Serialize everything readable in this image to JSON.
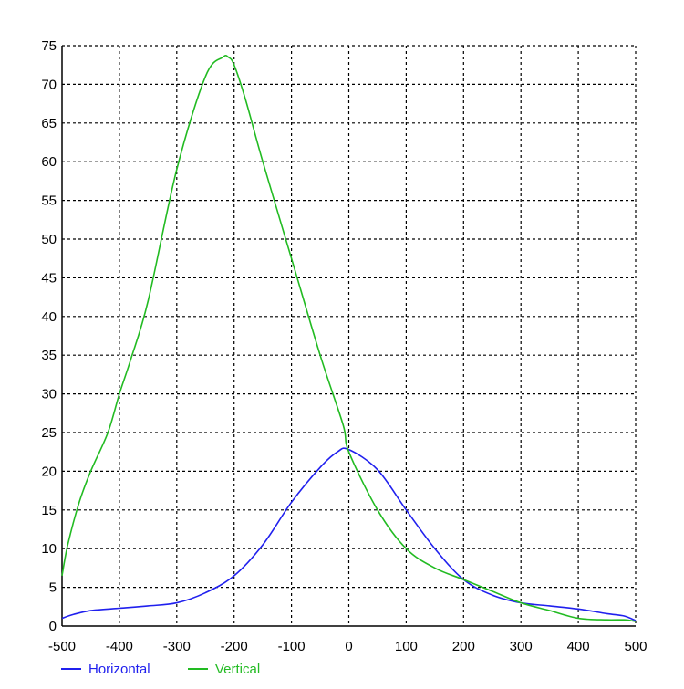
{
  "chart_data": {
    "type": "line",
    "title": "",
    "xlabel": "",
    "ylabel": "",
    "xlim": [
      -500,
      500
    ],
    "ylim": [
      0,
      75
    ],
    "xticks": [
      -500,
      -400,
      -300,
      -200,
      -100,
      0,
      100,
      200,
      300,
      400,
      500
    ],
    "yticks": [
      0,
      5,
      10,
      15,
      20,
      25,
      30,
      35,
      40,
      45,
      50,
      55,
      60,
      65,
      70,
      75
    ],
    "grid": true,
    "grid_style": "dashed",
    "legend_position": "bottom-left",
    "series": [
      {
        "name": "Horizontal",
        "color": "#2020ee",
        "x": [
          -500,
          -480,
          -450,
          -400,
          -350,
          -300,
          -250,
          -200,
          -150,
          -100,
          -50,
          -20,
          0,
          50,
          100,
          150,
          200,
          250,
          300,
          350,
          400,
          450,
          480,
          500
        ],
        "y": [
          1.0,
          1.5,
          2.0,
          2.3,
          2.6,
          3.0,
          4.3,
          6.5,
          10.5,
          16.0,
          20.5,
          22.5,
          22.8,
          20.2,
          15.0,
          10.0,
          6.0,
          4.0,
          3.0,
          2.6,
          2.2,
          1.6,
          1.3,
          0.7
        ]
      },
      {
        "name": "Vertical",
        "color": "#22bb22",
        "x": [
          -500,
          -490,
          -470,
          -450,
          -420,
          -400,
          -380,
          -350,
          -300,
          -250,
          -220,
          -210,
          -200,
          -180,
          -150,
          -100,
          -50,
          -10,
          0,
          50,
          100,
          150,
          200,
          250,
          300,
          350,
          400,
          450,
          480,
          500
        ],
        "y": [
          6.5,
          10.5,
          16.0,
          20.0,
          25.0,
          30.0,
          34.5,
          42.0,
          59.0,
          71.0,
          73.5,
          73.5,
          72.5,
          68.0,
          60.0,
          47.5,
          35.0,
          26.0,
          22.5,
          15.0,
          10.0,
          7.5,
          6.0,
          4.5,
          3.0,
          2.0,
          1.0,
          0.8,
          0.8,
          0.6
        ]
      }
    ]
  }
}
